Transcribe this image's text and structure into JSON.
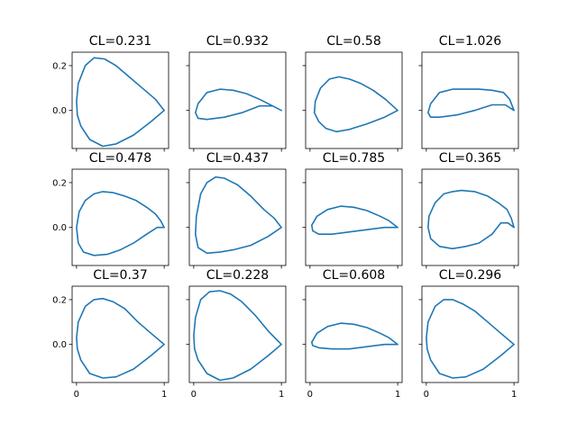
{
  "figure": {
    "line_color": "#1f77b4",
    "ytick_labels": [
      "0.2",
      "0.0"
    ],
    "yticks": [
      0.2,
      0.0
    ],
    "xtick_labels": [
      "0",
      "1"
    ],
    "xticks": [
      0,
      1
    ]
  },
  "chart_data": [
    {
      "type": "line",
      "title": "CL=0.231",
      "xlim": [
        -0.05,
        1.05
      ],
      "ylim": [
        -0.17,
        0.26
      ],
      "x": [
        1.0,
        0.85,
        0.65,
        0.45,
        0.3,
        0.15,
        0.05,
        0.01,
        0.0,
        0.02,
        0.1,
        0.2,
        0.32,
        0.45,
        0.6,
        0.75,
        0.9,
        1.0
      ],
      "y": [
        0.0,
        -0.05,
        -0.11,
        -0.15,
        -0.16,
        -0.13,
        -0.07,
        -0.02,
        0.04,
        0.12,
        0.2,
        0.235,
        0.23,
        0.2,
        0.15,
        0.1,
        0.05,
        0.0
      ]
    },
    {
      "type": "line",
      "title": "CL=0.932",
      "xlim": [
        -0.05,
        1.05
      ],
      "ylim": [
        -0.17,
        0.26
      ],
      "x": [
        1.0,
        0.9,
        0.75,
        0.55,
        0.35,
        0.15,
        0.05,
        0.02,
        0.05,
        0.15,
        0.3,
        0.45,
        0.6,
        0.75,
        0.9,
        1.0
      ],
      "y": [
        0.0,
        0.02,
        0.02,
        -0.01,
        -0.03,
        -0.04,
        -0.035,
        -0.01,
        0.03,
        0.08,
        0.095,
        0.09,
        0.075,
        0.05,
        0.02,
        0.0
      ]
    },
    {
      "type": "line",
      "title": "CL=0.58",
      "xlim": [
        -0.05,
        1.05
      ],
      "ylim": [
        -0.17,
        0.26
      ],
      "x": [
        1.0,
        0.85,
        0.65,
        0.45,
        0.3,
        0.18,
        0.1,
        0.05,
        0.06,
        0.12,
        0.22,
        0.33,
        0.45,
        0.58,
        0.72,
        0.86,
        1.0
      ],
      "y": [
        0.0,
        -0.03,
        -0.06,
        -0.085,
        -0.095,
        -0.08,
        -0.05,
        -0.01,
        0.04,
        0.1,
        0.14,
        0.15,
        0.14,
        0.12,
        0.09,
        0.05,
        0.0
      ]
    },
    {
      "type": "line",
      "title": "CL=1.026",
      "xlim": [
        -0.05,
        1.05
      ],
      "ylim": [
        -0.17,
        0.26
      ],
      "x": [
        1.0,
        0.9,
        0.75,
        0.55,
        0.35,
        0.15,
        0.05,
        0.02,
        0.05,
        0.15,
        0.3,
        0.45,
        0.6,
        0.75,
        0.88,
        0.95,
        1.0
      ],
      "y": [
        0.0,
        0.025,
        0.025,
        0.0,
        -0.02,
        -0.03,
        -0.03,
        -0.01,
        0.03,
        0.08,
        0.095,
        0.095,
        0.095,
        0.09,
        0.08,
        0.05,
        0.0
      ]
    },
    {
      "type": "line",
      "title": "CL=0.478",
      "xlim": [
        -0.05,
        1.05
      ],
      "ylim": [
        -0.17,
        0.26
      ],
      "x": [
        1.0,
        0.92,
        0.8,
        0.65,
        0.5,
        0.35,
        0.2,
        0.08,
        0.02,
        0.0,
        0.03,
        0.1,
        0.2,
        0.3,
        0.42,
        0.55,
        0.68,
        0.8,
        0.9,
        0.96,
        1.0
      ],
      "y": [
        0.0,
        0.0,
        -0.03,
        -0.07,
        -0.1,
        -0.12,
        -0.125,
        -0.11,
        -0.07,
        0.0,
        0.07,
        0.12,
        0.15,
        0.16,
        0.155,
        0.14,
        0.12,
        0.09,
        0.06,
        0.03,
        0.0
      ]
    },
    {
      "type": "line",
      "title": "CL=0.437",
      "xlim": [
        -0.05,
        1.05
      ],
      "ylim": [
        -0.17,
        0.26
      ],
      "x": [
        1.0,
        0.85,
        0.65,
        0.45,
        0.3,
        0.15,
        0.05,
        0.02,
        0.03,
        0.08,
        0.15,
        0.25,
        0.35,
        0.5,
        0.65,
        0.8,
        0.92,
        1.0
      ],
      "y": [
        0.0,
        -0.04,
        -0.08,
        -0.1,
        -0.11,
        -0.115,
        -0.09,
        -0.03,
        0.05,
        0.15,
        0.2,
        0.225,
        0.22,
        0.19,
        0.14,
        0.08,
        0.04,
        0.0
      ]
    },
    {
      "type": "line",
      "title": "CL=0.785",
      "xlim": [
        -0.05,
        1.05
      ],
      "ylim": [
        -0.17,
        0.26
      ],
      "x": [
        1.0,
        0.85,
        0.65,
        0.45,
        0.25,
        0.1,
        0.03,
        0.02,
        0.08,
        0.2,
        0.35,
        0.5,
        0.65,
        0.8,
        0.9,
        1.0
      ],
      "y": [
        0.0,
        0.0,
        -0.01,
        -0.02,
        -0.03,
        -0.03,
        -0.015,
        0.01,
        0.05,
        0.08,
        0.095,
        0.09,
        0.075,
        0.05,
        0.03,
        0.0
      ]
    },
    {
      "type": "line",
      "title": "CL=0.365",
      "xlim": [
        -0.05,
        1.05
      ],
      "ylim": [
        -0.17,
        0.26
      ],
      "x": [
        1.0,
        0.93,
        0.85,
        0.75,
        0.6,
        0.45,
        0.3,
        0.15,
        0.05,
        0.02,
        0.03,
        0.1,
        0.2,
        0.3,
        0.4,
        0.55,
        0.7,
        0.82,
        0.92,
        0.97,
        1.0
      ],
      "y": [
        0.0,
        0.02,
        0.02,
        -0.03,
        -0.07,
        -0.085,
        -0.095,
        -0.085,
        -0.05,
        0.0,
        0.05,
        0.11,
        0.15,
        0.16,
        0.165,
        0.16,
        0.14,
        0.11,
        0.08,
        0.04,
        0.0
      ]
    },
    {
      "type": "line",
      "title": "CL=0.37",
      "xlim": [
        -0.05,
        1.05
      ],
      "ylim": [
        -0.17,
        0.26
      ],
      "x": [
        1.0,
        0.85,
        0.65,
        0.45,
        0.3,
        0.15,
        0.05,
        0.01,
        0.0,
        0.02,
        0.1,
        0.2,
        0.3,
        0.42,
        0.55,
        0.7,
        0.85,
        1.0
      ],
      "y": [
        0.0,
        -0.05,
        -0.11,
        -0.145,
        -0.15,
        -0.13,
        -0.07,
        -0.02,
        0.03,
        0.1,
        0.17,
        0.2,
        0.205,
        0.19,
        0.16,
        0.1,
        0.05,
        0.0
      ]
    },
    {
      "type": "line",
      "title": "CL=0.228",
      "xlim": [
        -0.05,
        1.05
      ],
      "ylim": [
        -0.17,
        0.26
      ],
      "x": [
        1.0,
        0.85,
        0.65,
        0.45,
        0.3,
        0.15,
        0.05,
        0.01,
        0.0,
        0.02,
        0.08,
        0.18,
        0.3,
        0.42,
        0.55,
        0.7,
        0.85,
        1.0
      ],
      "y": [
        0.0,
        -0.05,
        -0.11,
        -0.15,
        -0.16,
        -0.13,
        -0.07,
        -0.02,
        0.04,
        0.12,
        0.2,
        0.235,
        0.24,
        0.225,
        0.19,
        0.13,
        0.06,
        0.0
      ]
    },
    {
      "type": "line",
      "title": "CL=0.608",
      "xlim": [
        -0.05,
        1.05
      ],
      "ylim": [
        -0.17,
        0.26
      ],
      "x": [
        1.0,
        0.85,
        0.65,
        0.45,
        0.25,
        0.1,
        0.03,
        0.02,
        0.08,
        0.2,
        0.35,
        0.5,
        0.65,
        0.8,
        0.9,
        1.0
      ],
      "y": [
        0.0,
        0.0,
        -0.01,
        -0.02,
        -0.02,
        -0.015,
        -0.005,
        0.01,
        0.05,
        0.08,
        0.095,
        0.09,
        0.075,
        0.05,
        0.03,
        0.0
      ]
    },
    {
      "type": "line",
      "title": "CL=0.296",
      "xlim": [
        -0.05,
        1.05
      ],
      "ylim": [
        -0.17,
        0.26
      ],
      "x": [
        1.0,
        0.85,
        0.65,
        0.45,
        0.3,
        0.15,
        0.05,
        0.01,
        0.0,
        0.02,
        0.1,
        0.2,
        0.3,
        0.42,
        0.55,
        0.7,
        0.85,
        1.0
      ],
      "y": [
        0.0,
        -0.05,
        -0.11,
        -0.145,
        -0.15,
        -0.13,
        -0.07,
        -0.02,
        0.03,
        0.1,
        0.17,
        0.2,
        0.2,
        0.18,
        0.15,
        0.1,
        0.05,
        0.0
      ]
    }
  ]
}
